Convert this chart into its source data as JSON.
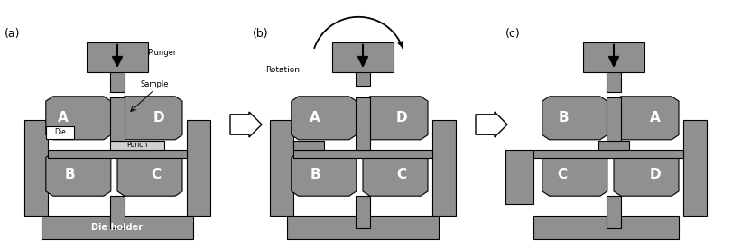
{
  "bg_color": "#ffffff",
  "gray": "#909090",
  "WHITE": "#ffffff",
  "BLACK": "#000000",
  "panel_labels": [
    "(a)",
    "(b)",
    "(c)"
  ]
}
